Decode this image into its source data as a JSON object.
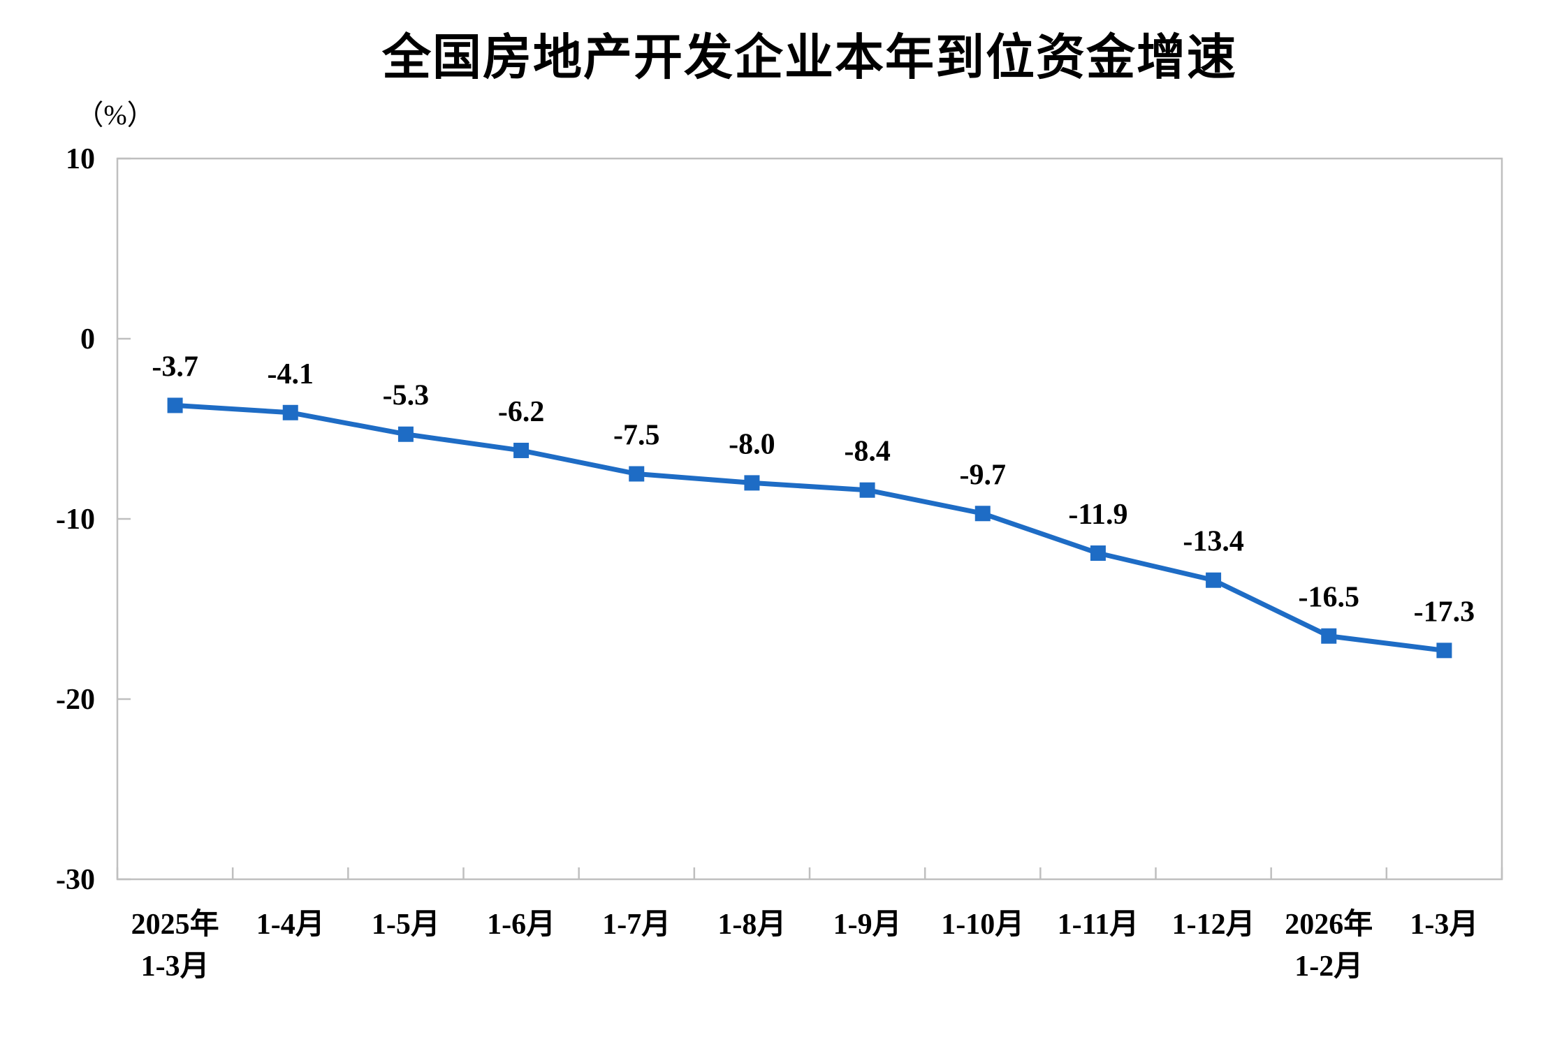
{
  "page": {
    "title": "全国房地产开发企业本年到位资金增速",
    "unit_label": "（%）"
  },
  "chart_data": {
    "type": "line",
    "title": "全国房地产开发企业本年到位资金增速",
    "ylabel": "（%）",
    "xlabel": "",
    "categories": [
      [
        "2025年",
        "1-3月"
      ],
      [
        "1-4月"
      ],
      [
        "1-5月"
      ],
      [
        "1-6月"
      ],
      [
        "1-7月"
      ],
      [
        "1-8月"
      ],
      [
        "1-9月"
      ],
      [
        "1-10月"
      ],
      [
        "1-11月"
      ],
      [
        "1-12月"
      ],
      [
        "2026年",
        "1-2月"
      ],
      [
        "1-3月"
      ]
    ],
    "values": [
      -3.7,
      -4.1,
      -5.3,
      -6.2,
      -7.5,
      -8.0,
      -8.4,
      -9.7,
      -11.9,
      -13.4,
      -16.5,
      -17.3
    ],
    "data_labels": [
      "-3.7",
      "-4.1",
      "-5.3",
      "-6.2",
      "-7.5",
      "-8.0",
      "-8.4",
      "-9.7",
      "-11.9",
      "-13.4",
      "-16.5",
      "-17.3"
    ],
    "ylim": [
      -30,
      10
    ],
    "yticks": [
      10,
      0,
      -10,
      -20,
      -30
    ],
    "grid": false,
    "legend": "none",
    "marker": "square",
    "colors": {
      "line": "#1E6CC5",
      "marker": "#1E6CC5",
      "axis": "#BFBFBF",
      "text": "#000000"
    }
  }
}
